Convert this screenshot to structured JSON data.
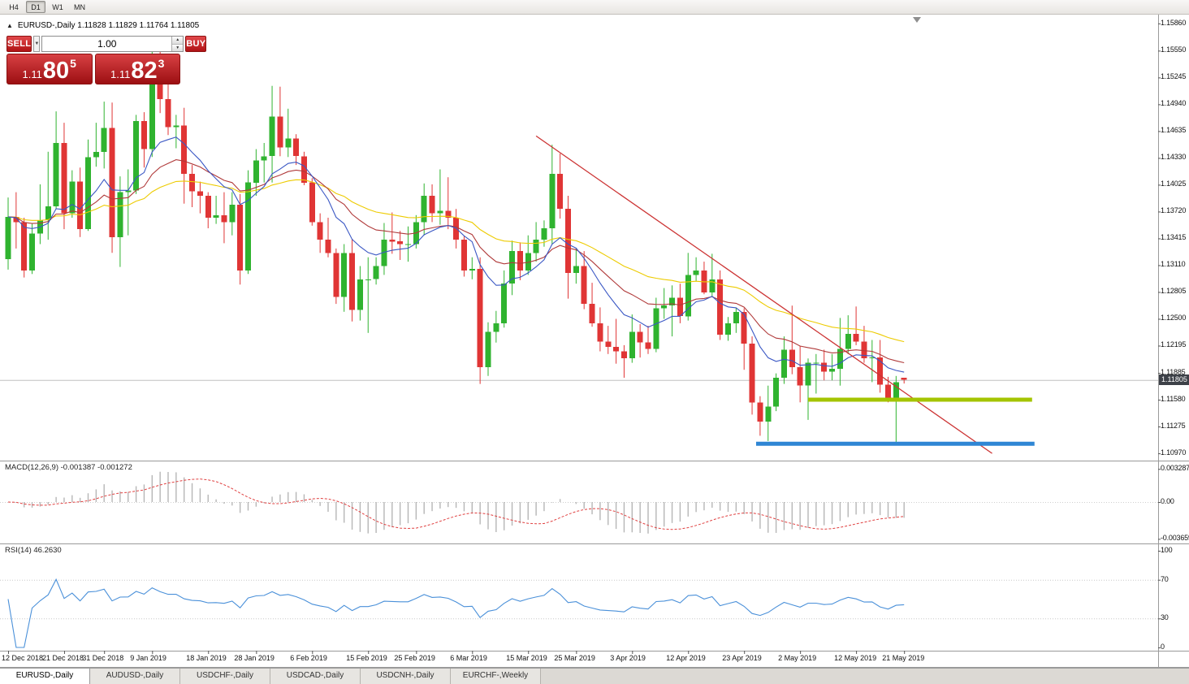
{
  "toolbar": {
    "timeframes": [
      {
        "label": "H4",
        "active": false
      },
      {
        "label": "D1",
        "active": true
      },
      {
        "label": "W1",
        "active": false
      },
      {
        "label": "MN",
        "active": false
      }
    ]
  },
  "chart_header": {
    "symbol_timeframe": "EURUSD-,Daily",
    "open": "1.11828",
    "high": "1.11829",
    "low": "1.11764",
    "close": "1.11805"
  },
  "one_click": {
    "sell_label": "SELL",
    "buy_label": "BUY",
    "volume": "1.00",
    "bid": {
      "prefix": "1.11",
      "main": "80",
      "pip": "5"
    },
    "ask": {
      "prefix": "1.11",
      "main": "82",
      "pip": "3"
    }
  },
  "icons": {
    "one_click_toggle": "▲",
    "volume_dropdown": "▼",
    "spinner_up": "▲",
    "spinner_down": "▼"
  },
  "price_axis": {
    "current": "1.11805",
    "labels": [
      "1.15860",
      "1.15550",
      "1.15245",
      "1.14940",
      "1.14635",
      "1.14330",
      "1.14025",
      "1.13720",
      "1.13415",
      "1.13110",
      "1.12805",
      "1.12500",
      "1.12195",
      "1.11885",
      "1.11580",
      "1.11275",
      "1.10970"
    ]
  },
  "macd_panel": {
    "label": "MACD(12,26,9) -0.001387 -0.001272",
    "axis_labels": [
      "0.003287",
      "0.00",
      "-0.003659"
    ]
  },
  "rsi_panel": {
    "label": "RSI(14) 46.2630",
    "axis_labels": [
      "100",
      "70",
      "30",
      "0"
    ],
    "levels": [
      70,
      30
    ]
  },
  "time_axis": {
    "labels": [
      "12 Dec 2018",
      "21 Dec 2018",
      "31 Dec 2018",
      "9 Jan 2019",
      "18 Jan 2019",
      "28 Jan 2019",
      "6 Feb 2019",
      "15 Feb 2019",
      "25 Feb 2019",
      "6 Mar 2019",
      "15 Mar 2019",
      "25 Mar 2019",
      "3 Apr 2019",
      "12 Apr 2019",
      "23 Apr 2019",
      "2 May 2019",
      "12 May 2019",
      "21 May 2019"
    ],
    "indices": [
      0,
      7,
      12,
      18,
      25,
      31,
      38,
      45,
      51,
      58,
      65,
      71,
      78,
      85,
      92,
      99,
      106,
      112
    ]
  },
  "tab_bar": {
    "tabs": [
      {
        "label": "EURUSD-,Daily",
        "active": true
      },
      {
        "label": "AUDUSD-,Daily",
        "active": false
      },
      {
        "label": "USDCHF-,Daily",
        "active": false
      },
      {
        "label": "USDCAD-,Daily",
        "active": false
      },
      {
        "label": "USDCNH-,Daily",
        "active": false
      },
      {
        "label": "EURCHF-,Weekly",
        "active": false
      }
    ]
  },
  "colors": {
    "candle_up": "#2fb32f",
    "candle_down": "#e03535",
    "ma_fast": "#3a57c4",
    "ma_mid": "#b03a3a",
    "ma_slow": "#edcb00",
    "trendline": "#cc3333",
    "resistance": "#a4c400",
    "support": "#2f86d4",
    "macd_histogram": "#b6b6b6",
    "macd_signal": "#e04040",
    "rsi_line": "#4a90d9",
    "bid_line": "#c0c0c0"
  },
  "chart_data": {
    "type": "candlestick",
    "symbol": "EURUSD-",
    "timeframe": "Daily",
    "price_range_top": 1.1596,
    "price_range_bottom": 1.1089,
    "candles": [
      [
        1.1318,
        1.1388,
        1.1306,
        1.1366
      ],
      [
        1.1366,
        1.1394,
        1.133,
        1.136
      ],
      [
        1.136,
        1.1365,
        1.1297,
        1.1305
      ],
      [
        1.1305,
        1.1358,
        1.1301,
        1.1347
      ],
      [
        1.1347,
        1.1403,
        1.1335,
        1.1362
      ],
      [
        1.1362,
        1.144,
        1.134,
        1.1378
      ],
      [
        1.1378,
        1.1486,
        1.1375,
        1.145
      ],
      [
        1.145,
        1.1473,
        1.1352,
        1.137
      ],
      [
        1.137,
        1.1419,
        1.1365,
        1.1406
      ],
      [
        1.1406,
        1.1422,
        1.1343,
        1.1352
      ],
      [
        1.1352,
        1.1454,
        1.135,
        1.1434
      ],
      [
        1.1434,
        1.1473,
        1.1423,
        1.144
      ],
      [
        1.144,
        1.1497,
        1.1421,
        1.1467
      ],
      [
        1.1467,
        1.1496,
        1.1325,
        1.1343
      ],
      [
        1.1343,
        1.1412,
        1.1309,
        1.1394
      ],
      [
        1.1394,
        1.142,
        1.1345,
        1.1396
      ],
      [
        1.1396,
        1.1482,
        1.1392,
        1.1475
      ],
      [
        1.1475,
        1.1485,
        1.1422,
        1.1443
      ],
      [
        1.1443,
        1.157,
        1.1434,
        1.1545
      ],
      [
        1.1545,
        1.1572,
        1.1484,
        1.15
      ],
      [
        1.15,
        1.1541,
        1.1459,
        1.1468
      ],
      [
        1.1468,
        1.1482,
        1.1444,
        1.147
      ],
      [
        1.147,
        1.149,
        1.1381,
        1.1415
      ],
      [
        1.1415,
        1.1425,
        1.1377,
        1.1395
      ],
      [
        1.1395,
        1.1406,
        1.137,
        1.139
      ],
      [
        1.139,
        1.1394,
        1.1353,
        1.1365
      ],
      [
        1.1365,
        1.139,
        1.1358,
        1.1368
      ],
      [
        1.1368,
        1.1394,
        1.1336,
        1.136
      ],
      [
        1.136,
        1.1394,
        1.1345,
        1.138
      ],
      [
        1.138,
        1.1392,
        1.1289,
        1.1305
      ],
      [
        1.1305,
        1.1419,
        1.1301,
        1.1405
      ],
      [
        1.1405,
        1.1443,
        1.139,
        1.143
      ],
      [
        1.143,
        1.145,
        1.1405,
        1.1435
      ],
      [
        1.1435,
        1.1515,
        1.1405,
        1.148
      ],
      [
        1.148,
        1.1514,
        1.1435,
        1.1445
      ],
      [
        1.1445,
        1.1489,
        1.1434,
        1.1455
      ],
      [
        1.1455,
        1.146,
        1.1425,
        1.1435
      ],
      [
        1.1435,
        1.144,
        1.1402,
        1.1405
      ],
      [
        1.1405,
        1.141,
        1.1356,
        1.136
      ],
      [
        1.136,
        1.137,
        1.1325,
        1.134
      ],
      [
        1.134,
        1.1365,
        1.132,
        1.1325
      ],
      [
        1.1325,
        1.133,
        1.1267,
        1.1275
      ],
      [
        1.1275,
        1.1335,
        1.1258,
        1.1325
      ],
      [
        1.1325,
        1.1341,
        1.1247,
        1.126
      ],
      [
        1.126,
        1.131,
        1.1248,
        1.1295
      ],
      [
        1.1295,
        1.132,
        1.1234,
        1.1295
      ],
      [
        1.1295,
        1.132,
        1.1289,
        1.131
      ],
      [
        1.131,
        1.1359,
        1.13,
        1.134
      ],
      [
        1.134,
        1.1371,
        1.1324,
        1.1338
      ],
      [
        1.1338,
        1.135,
        1.1317,
        1.1335
      ],
      [
        1.1335,
        1.1355,
        1.1315,
        1.1335
      ],
      [
        1.1335,
        1.1368,
        1.133,
        1.136
      ],
      [
        1.136,
        1.1404,
        1.1345,
        1.139
      ],
      [
        1.139,
        1.1403,
        1.136,
        1.137
      ],
      [
        1.137,
        1.142,
        1.1357,
        1.1373
      ],
      [
        1.1373,
        1.1411,
        1.1352,
        1.1365
      ],
      [
        1.1365,
        1.1375,
        1.133,
        1.134
      ],
      [
        1.134,
        1.1344,
        1.1298,
        1.1305
      ],
      [
        1.1305,
        1.132,
        1.1295,
        1.1307
      ],
      [
        1.1307,
        1.132,
        1.1176,
        1.1195
      ],
      [
        1.1195,
        1.1246,
        1.1185,
        1.1235
      ],
      [
        1.1235,
        1.1259,
        1.1223,
        1.1245
      ],
      [
        1.1245,
        1.1305,
        1.124,
        1.129
      ],
      [
        1.129,
        1.1339,
        1.1277,
        1.1327
      ],
      [
        1.1327,
        1.1337,
        1.1294,
        1.1305
      ],
      [
        1.1305,
        1.1345,
        1.13,
        1.1325
      ],
      [
        1.1325,
        1.136,
        1.1315,
        1.134
      ],
      [
        1.134,
        1.1362,
        1.1332,
        1.1353
      ],
      [
        1.1353,
        1.1448,
        1.1335,
        1.1415
      ],
      [
        1.1415,
        1.1438,
        1.1364,
        1.1375
      ],
      [
        1.1375,
        1.139,
        1.1273,
        1.1302
      ],
      [
        1.1302,
        1.133,
        1.129,
        1.131
      ],
      [
        1.131,
        1.1327,
        1.1261,
        1.1267
      ],
      [
        1.1267,
        1.1291,
        1.1241,
        1.1245
      ],
      [
        1.1245,
        1.1263,
        1.1213,
        1.1224
      ],
      [
        1.1224,
        1.1242,
        1.121,
        1.1218
      ],
      [
        1.1218,
        1.125,
        1.1199,
        1.1213
      ],
      [
        1.1213,
        1.122,
        1.1183,
        1.1205
      ],
      [
        1.1205,
        1.1255,
        1.12,
        1.1235
      ],
      [
        1.1235,
        1.1244,
        1.1206,
        1.1223
      ],
      [
        1.1223,
        1.1242,
        1.121,
        1.1216
      ],
      [
        1.1216,
        1.1274,
        1.1212,
        1.1262
      ],
      [
        1.1262,
        1.1285,
        1.125,
        1.1265
      ],
      [
        1.1265,
        1.1288,
        1.123,
        1.1274
      ],
      [
        1.1274,
        1.129,
        1.1245,
        1.1253
      ],
      [
        1.1253,
        1.1325,
        1.1248,
        1.13
      ],
      [
        1.13,
        1.132,
        1.1293,
        1.1305
      ],
      [
        1.1305,
        1.1315,
        1.1278,
        1.128
      ],
      [
        1.128,
        1.1324,
        1.1275,
        1.1295
      ],
      [
        1.1295,
        1.1305,
        1.1226,
        1.1232
      ],
      [
        1.1232,
        1.1252,
        1.1225,
        1.1245
      ],
      [
        1.1245,
        1.1262,
        1.1234,
        1.1258
      ],
      [
        1.1258,
        1.1262,
        1.1192,
        1.1222
      ],
      [
        1.1222,
        1.123,
        1.1141,
        1.1155
      ],
      [
        1.1155,
        1.1162,
        1.1117,
        1.1133
      ],
      [
        1.1133,
        1.1174,
        1.1111,
        1.115
      ],
      [
        1.115,
        1.1188,
        1.1145,
        1.1183
      ],
      [
        1.1183,
        1.123,
        1.1176,
        1.1215
      ],
      [
        1.1215,
        1.1265,
        1.1187,
        1.1195
      ],
      [
        1.1195,
        1.1219,
        1.1155,
        1.1174
      ],
      [
        1.1174,
        1.1205,
        1.1135,
        1.12
      ],
      [
        1.12,
        1.121,
        1.1165,
        1.12
      ],
      [
        1.12,
        1.1215,
        1.118,
        1.119
      ],
      [
        1.119,
        1.121,
        1.118,
        1.1193
      ],
      [
        1.1193,
        1.1251,
        1.1174,
        1.1216
      ],
      [
        1.1216,
        1.1254,
        1.121,
        1.1233
      ],
      [
        1.1233,
        1.1264,
        1.122,
        1.1224
      ],
      [
        1.1224,
        1.1242,
        1.12,
        1.1205
      ],
      [
        1.1205,
        1.1226,
        1.1178,
        1.1206
      ],
      [
        1.1206,
        1.1226,
        1.1166,
        1.1175
      ],
      [
        1.1175,
        1.1184,
        1.1155,
        1.116
      ],
      [
        1.116,
        1.1185,
        1.1107,
        1.1178
      ],
      [
        1.11828,
        1.11829,
        1.11764,
        1.11805
      ]
    ],
    "moving_averages": [
      {
        "period": 10,
        "method": "ema",
        "color_key": "ma_fast"
      },
      {
        "period": 20,
        "method": "ema",
        "color_key": "ma_mid"
      },
      {
        "period": 40,
        "method": "ema",
        "color_key": "ma_slow"
      }
    ],
    "indicators": [
      {
        "name": "MACD",
        "params": [
          12,
          26,
          9
        ]
      },
      {
        "name": "RSI",
        "params": [
          14
        ]
      }
    ],
    "objects": {
      "trendline": {
        "from_index": 66,
        "from_price": 1.1458,
        "to_index": 123,
        "to_price": 1.1097
      },
      "resistance_line": {
        "price": 1.1158,
        "from_index": 100,
        "to_index": 128,
        "width": 5
      },
      "support_line": {
        "price": 1.1108,
        "from_index": 93.5,
        "to_index": 128.3,
        "width": 5
      }
    }
  }
}
